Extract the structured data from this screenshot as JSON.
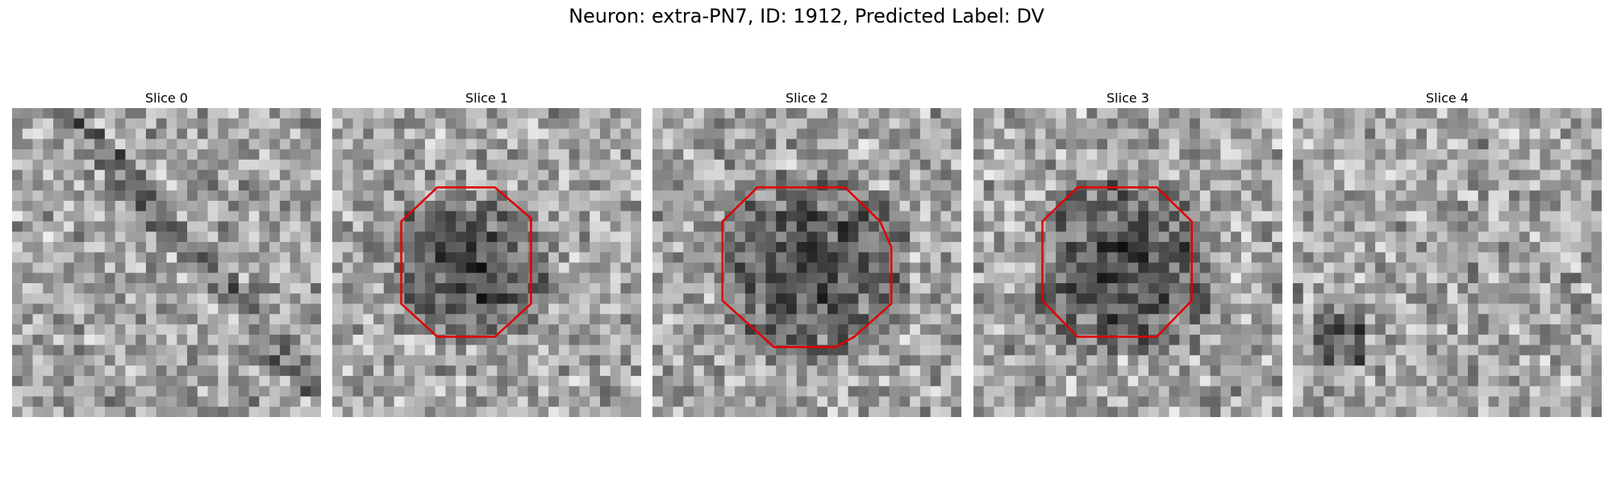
{
  "title": "Neuron: extra-PN7, ID: 1912, Predicted Label: DV",
  "panels": [
    {
      "title": "Slice 0"
    },
    {
      "title": "Slice 1"
    },
    {
      "title": "Slice 2"
    },
    {
      "title": "Slice 3"
    },
    {
      "title": "Slice 4"
    }
  ]
}
